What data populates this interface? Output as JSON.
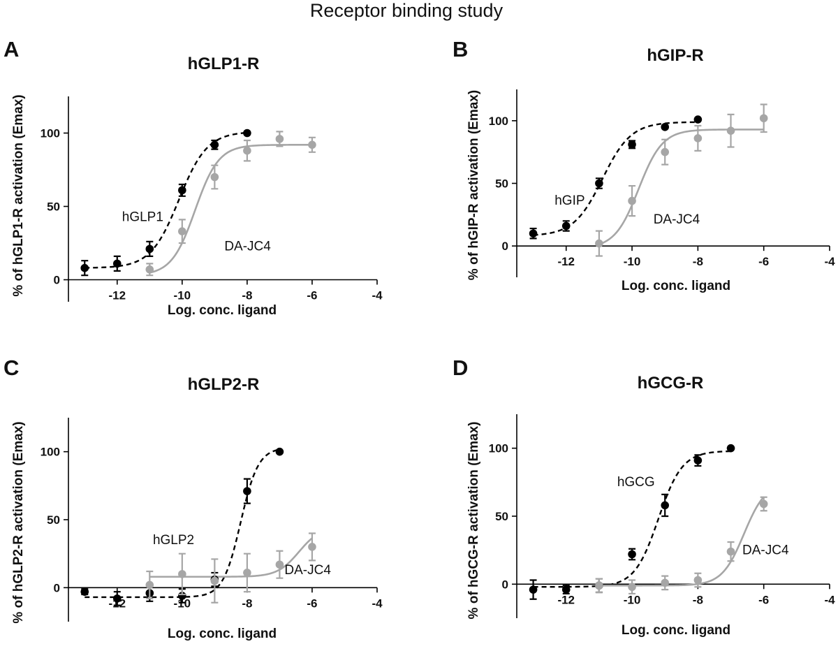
{
  "figure": {
    "title": "Receptor binding study"
  },
  "colors": {
    "ligand": "#000000",
    "dajc4": "#a6a6a6"
  },
  "chart_data": [
    {
      "type": "scatter",
      "panel": "A",
      "title": "hGLP1-R",
      "xlabel": "Log. conc. ligand",
      "ylabel": "% of hGLP1-R activation (Emax)",
      "xlim": [
        -13.5,
        -4
      ],
      "ylim": [
        -15,
        125
      ],
      "xticks": [
        -12,
        -10,
        -8,
        -6,
        -4
      ],
      "yticks": [
        0,
        50,
        100
      ],
      "series": [
        {
          "name": "hGLP1",
          "style": "dashed",
          "color": "#000000",
          "x": [
            -13,
            -12,
            -11,
            -10,
            -9,
            -8
          ],
          "y": [
            8,
            11,
            21,
            61,
            92,
            100
          ],
          "err": [
            5,
            5,
            5,
            4,
            3,
            0
          ],
          "fit": {
            "bottom": 8,
            "top": 101,
            "logEC50": -10.1,
            "hill": 1.0,
            "xmin": -13,
            "xmax": -8
          }
        },
        {
          "name": "DA-JC4",
          "style": "solid",
          "color": "#a6a6a6",
          "x": [
            -11,
            -10,
            -9,
            -8,
            -7,
            -6
          ],
          "y": [
            7,
            33,
            70,
            88,
            96,
            92
          ],
          "err": [
            4,
            8,
            8,
            7,
            5,
            5
          ],
          "fit": {
            "bottom": 3,
            "top": 92,
            "logEC50": -9.6,
            "hill": 1.2,
            "xmin": -11,
            "xmax": -6
          }
        }
      ],
      "annotations": [
        {
          "text": "hGLP1",
          "x": -11.85,
          "y": 40
        },
        {
          "text": "DA-JC4",
          "x": -8.7,
          "y": 20
        }
      ]
    },
    {
      "type": "scatter",
      "panel": "B",
      "title": "hGIP-R",
      "xlabel": "Log. conc. ligand",
      "ylabel": "% of hGIP-R activation (Emax)",
      "xlim": [
        -13.5,
        -4
      ],
      "ylim": [
        -25,
        125
      ],
      "xticks": [
        -12,
        -10,
        -8,
        -6,
        -4
      ],
      "yticks": [
        0,
        50,
        100
      ],
      "series": [
        {
          "name": "hGIP",
          "style": "dashed",
          "color": "#000000",
          "x": [
            -13,
            -12,
            -11,
            -10,
            -9,
            -8
          ],
          "y": [
            10,
            16,
            50,
            81,
            95,
            101
          ],
          "err": [
            4,
            4,
            4,
            3,
            1,
            0
          ],
          "fit": {
            "bottom": 8,
            "top": 99,
            "logEC50": -10.9,
            "hill": 1.0,
            "xmin": -13,
            "xmax": -8
          }
        },
        {
          "name": "DA-JC4",
          "style": "solid",
          "color": "#a6a6a6",
          "x": [
            -11,
            -10,
            -9,
            -8,
            -7,
            -6
          ],
          "y": [
            2,
            36,
            75,
            86,
            92,
            102
          ],
          "err": [
            10,
            12,
            10,
            10,
            13,
            11
          ],
          "fit": {
            "bottom": -2,
            "top": 93,
            "logEC50": -9.8,
            "hill": 1.2,
            "xmin": -11,
            "xmax": -6
          }
        }
      ],
      "annotations": [
        {
          "text": "hGIP",
          "x": -12.35,
          "y": 33
        },
        {
          "text": "DA-JC4",
          "x": -9.35,
          "y": 18
        }
      ]
    },
    {
      "type": "scatter",
      "panel": "C",
      "title": "hGLP2-R",
      "xlabel": "Log. conc. ligand",
      "ylabel": "% of hGLP2-R activation (Emax)",
      "xlim": [
        -13.5,
        -4
      ],
      "ylim": [
        -25,
        125
      ],
      "xticks": [
        -12,
        -10,
        -8,
        -6,
        -4
      ],
      "yticks": [
        0,
        50,
        100
      ],
      "series": [
        {
          "name": "hGLP2",
          "style": "dashed",
          "color": "#000000",
          "x": [
            -13,
            -12,
            -11,
            -10,
            -9,
            -8,
            -7
          ],
          "y": [
            -3,
            -8,
            -4,
            -6,
            6,
            71,
            100
          ],
          "err": [
            2,
            5,
            6,
            5,
            5,
            9,
            0
          ],
          "fit": {
            "bottom": -7,
            "top": 103,
            "logEC50": -8.2,
            "hill": 1.6,
            "xmin": -13,
            "xmax": -7
          }
        },
        {
          "name": "DA-JC4",
          "style": "solid",
          "color": "#a6a6a6",
          "x": [
            -11,
            -10,
            -9,
            -8,
            -7,
            -6
          ],
          "y": [
            2,
            10,
            5,
            11,
            17,
            30
          ],
          "err": [
            10,
            15,
            16,
            14,
            10,
            10
          ],
          "fit": {
            "bottom": 8,
            "top": 45,
            "logEC50": -6.4,
            "hill": 1.3,
            "xmin": -11,
            "xmax": -6
          }
        }
      ],
      "annotations": [
        {
          "text": "hGLP2",
          "x": -10.9,
          "y": 32
        },
        {
          "text": "DA-JC4",
          "x": -6.85,
          "y": 10
        }
      ]
    },
    {
      "type": "scatter",
      "panel": "D",
      "title": "hGCG-R",
      "xlabel": "Log. conc. ligand",
      "ylabel": "% of hGCG-R activation (Emax)",
      "xlim": [
        -13.5,
        -4
      ],
      "ylim": [
        -25,
        125
      ],
      "xticks": [
        -12,
        -10,
        -8,
        -6,
        -4
      ],
      "yticks": [
        0,
        50,
        100
      ],
      "series": [
        {
          "name": "hGCG",
          "style": "dashed",
          "color": "#000000",
          "x": [
            -13,
            -12,
            -11,
            -10,
            -9,
            -8,
            -7
          ],
          "y": [
            -4,
            -4,
            -1,
            22,
            58,
            91,
            100
          ],
          "err": [
            7,
            3,
            5,
            4,
            8,
            4,
            0
          ],
          "fit": {
            "bottom": -2,
            "top": 98,
            "logEC50": -9.2,
            "hill": 1.2,
            "xmin": -13,
            "xmax": -7
          }
        },
        {
          "name": "DA-JC4",
          "style": "solid",
          "color": "#a6a6a6",
          "x": [
            -11,
            -10,
            -9,
            -8,
            -7,
            -6
          ],
          "y": [
            -1,
            -2,
            1,
            3,
            24,
            59
          ],
          "err": [
            5,
            5,
            5,
            5,
            7,
            5
          ],
          "fit": {
            "bottom": -1,
            "top": 75,
            "logEC50": -6.6,
            "hill": 1.3,
            "xmin": -11,
            "xmax": -6
          }
        }
      ],
      "annotations": [
        {
          "text": "hGCG",
          "x": -10.45,
          "y": 72
        },
        {
          "text": "DA-JC4",
          "x": -6.65,
          "y": 22
        }
      ]
    }
  ]
}
